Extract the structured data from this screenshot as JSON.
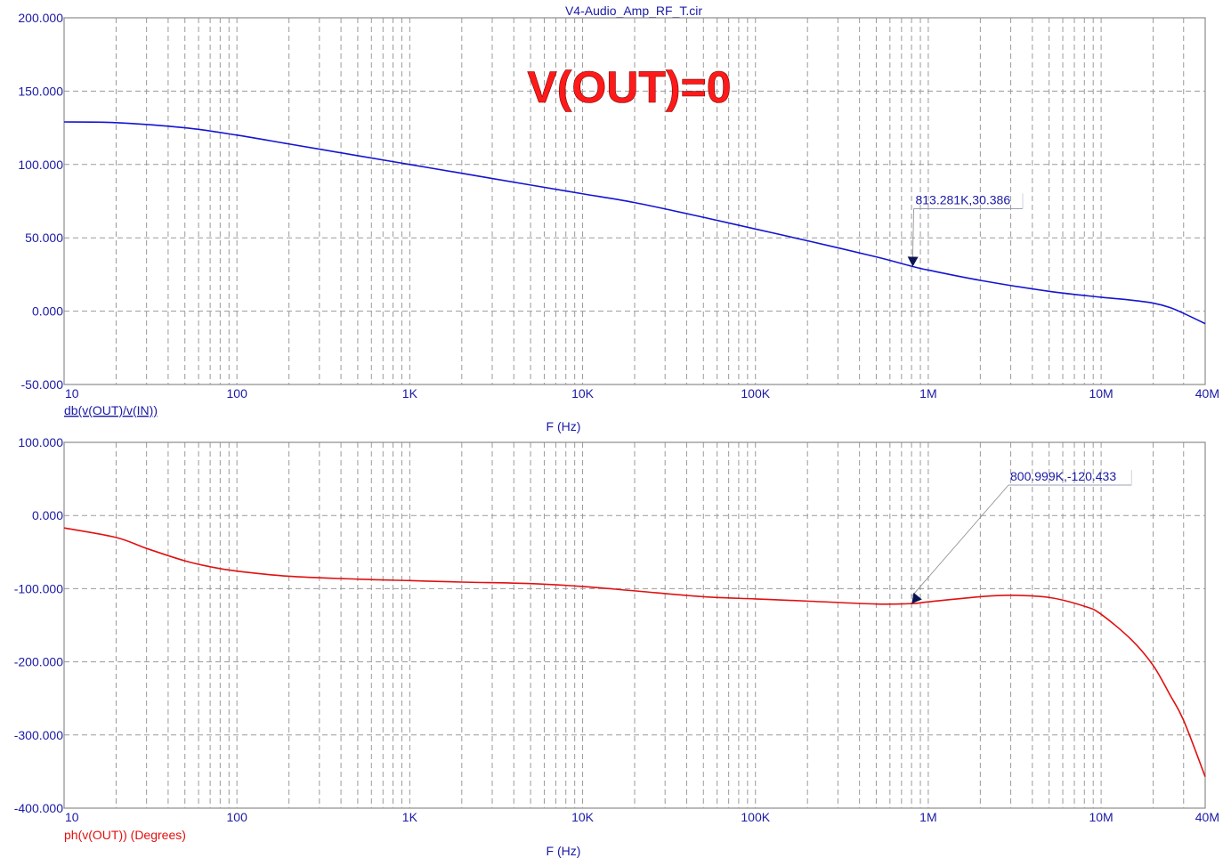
{
  "window_title": "V4-Audio_Amp_RF_T.cir",
  "overlay_text": "V(OUT)=0",
  "colors": {
    "frame": "#8c8c8c",
    "grid": "#9a9a9a",
    "text": "#1a1aa6",
    "trace_db": "#1414d2",
    "trace_ph": "#e01010",
    "overlay": "#ff1a1a",
    "marker": "#0a1450"
  },
  "chart_data": [
    {
      "type": "line",
      "xlabel": "F (Hz)",
      "ylabel": "db(v(OUT)/v(IN))",
      "xscale": "log",
      "xlim": [
        10,
        40000000
      ],
      "ylim": [
        -50,
        200
      ],
      "x_tick_labels": [
        "10",
        "100",
        "1K",
        "10K",
        "100K",
        "1M",
        "10M",
        "40M"
      ],
      "y_tick_labels": [
        "200.000",
        "150.000",
        "100.000",
        "50.000",
        "0.000",
        "-50.000"
      ],
      "grid": true,
      "series": [
        {
          "name": "db(v(OUT)/v(IN))",
          "color": "#1414d2",
          "x": [
            10,
            20,
            50,
            100,
            200,
            500,
            1000,
            2000,
            5000,
            10000,
            20000,
            50000,
            100000,
            200000,
            500000,
            813281,
            1000000,
            2000000,
            5000000,
            10000000,
            15000000,
            20000000,
            25000000,
            30000000,
            40000000
          ],
          "y": [
            129,
            128.5,
            125,
            120,
            114,
            106,
            100,
            94,
            86,
            80,
            74,
            64,
            56,
            48,
            37,
            30.4,
            28,
            21,
            13.5,
            9.5,
            7.5,
            5.5,
            2.5,
            -1.5,
            -8.5
          ]
        }
      ],
      "annotations": [
        {
          "label": "813.281K,30.386",
          "x": 813281,
          "y": 30.386
        }
      ]
    },
    {
      "type": "line",
      "xlabel": "F (Hz)",
      "ylabel": "ph(v(OUT)) (Degrees)",
      "xscale": "log",
      "xlim": [
        10,
        40000000
      ],
      "ylim": [
        -400,
        100
      ],
      "x_tick_labels": [
        "10",
        "100",
        "1K",
        "10K",
        "100K",
        "1M",
        "10M",
        "40M"
      ],
      "y_tick_labels": [
        "100.000",
        "0.000",
        "-100.000",
        "-200.000",
        "-300.000",
        "-400.000"
      ],
      "grid": true,
      "series": [
        {
          "name": "ph(v(OUT)) (Degrees)",
          "color": "#e01010",
          "x": [
            10,
            20,
            30,
            50,
            70,
            100,
            200,
            500,
            1000,
            2000,
            5000,
            10000,
            20000,
            50000,
            100000,
            200000,
            500000,
            800999,
            1000000,
            2000000,
            3000000,
            5000000,
            8000000,
            10000000,
            15000000,
            20000000,
            25000000,
            30000000,
            40000000
          ],
          "y": [
            -17,
            -30,
            -45,
            -62,
            -70,
            -76,
            -83,
            -87,
            -89,
            -91,
            -93,
            -97,
            -103,
            -111,
            -114,
            -117,
            -121,
            -120.4,
            -118,
            -111,
            -109,
            -112,
            -124,
            -135,
            -170,
            -205,
            -245,
            -280,
            -357
          ]
        }
      ],
      "annotations": [
        {
          "label": "800.999K,-120.433",
          "x": 800999,
          "y": -120.433
        }
      ]
    }
  ]
}
